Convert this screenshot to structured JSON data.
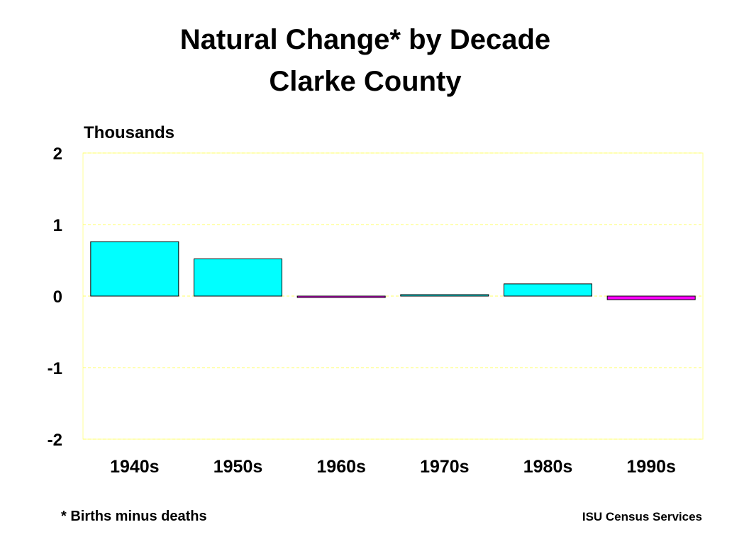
{
  "header": {
    "title_line1": "Natural Change* by Decade",
    "title_line2": "Clarke County"
  },
  "footer": {
    "footnote": "* Births minus deaths",
    "credit": "ISU Census Services"
  },
  "colors": {
    "positive_bar": "#00FFFF",
    "negative_bar": "#FF00FF",
    "gridline": "#FFFF66",
    "plot_border": "#FFFF99",
    "bar_outline": "#000000"
  },
  "chart_data": {
    "type": "bar",
    "title": "Natural Change* by Decade Clarke County",
    "ylabel": "Thousands",
    "xlabel": "",
    "ylim": [
      -2,
      2
    ],
    "yticks": [
      2,
      1,
      0,
      -1,
      -2
    ],
    "grid": true,
    "categories": [
      "1940s",
      "1950s",
      "1960s",
      "1970s",
      "1980s",
      "1990s"
    ],
    "values": [
      0.76,
      0.52,
      -0.01,
      0.02,
      0.17,
      -0.05
    ]
  }
}
